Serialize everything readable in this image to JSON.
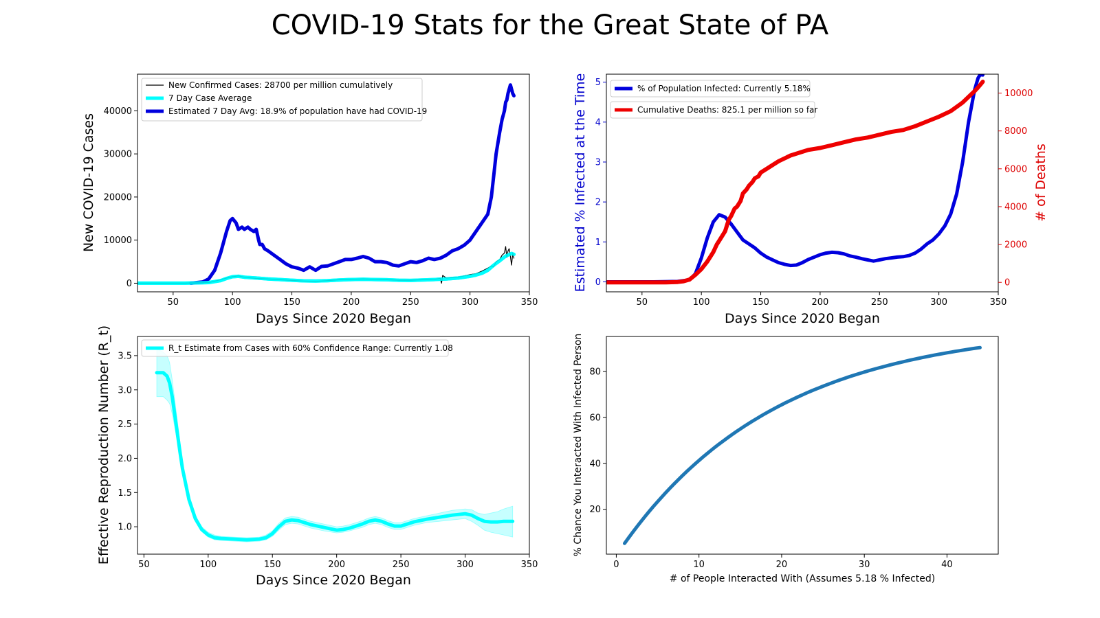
{
  "title": "COVID-19 Stats for the Great State of PA",
  "chart_data": [
    {
      "type": "line",
      "xlabel": "Days Since 2020 Began",
      "ylabel": "New COVID-19 Cases",
      "xlim": [
        20,
        350
      ],
      "ylim": [
        -2000,
        48500
      ],
      "xticks": [
        50,
        100,
        150,
        200,
        250,
        300,
        350
      ],
      "yticks": [
        0,
        10000,
        20000,
        30000,
        40000
      ],
      "legend_position": "top-left",
      "series": [
        {
          "name": "New Confirmed Cases: 28700 per million cumulatively",
          "color": "#000000",
          "style": "thin",
          "x": [
            20,
            60,
            80,
            90,
            95,
            100,
            105,
            110,
            120,
            130,
            140,
            150,
            160,
            170,
            180,
            190,
            200,
            210,
            220,
            230,
            240,
            250,
            260,
            270,
            275,
            276,
            277,
            280,
            290,
            300,
            305,
            310,
            315,
            318,
            320,
            322,
            325,
            327,
            329,
            330,
            331,
            332,
            333,
            334,
            335,
            336,
            337
          ],
          "y": [
            0,
            0,
            150,
            800,
            1200,
            1500,
            1700,
            1400,
            1100,
            1000,
            800,
            650,
            500,
            400,
            600,
            800,
            900,
            1000,
            900,
            800,
            700,
            700,
            800,
            900,
            1100,
            0,
            1800,
            1200,
            1400,
            2000,
            2200,
            2800,
            3500,
            4000,
            3800,
            5000,
            5500,
            6500,
            7000,
            8500,
            6000,
            7500,
            8000,
            6200,
            4200,
            7000,
            5800
          ]
        },
        {
          "name": "7 Day Case Average",
          "color": "#00ffff",
          "style": "thick",
          "x": [
            20,
            60,
            80,
            90,
            95,
            100,
            105,
            110,
            120,
            130,
            140,
            150,
            160,
            170,
            180,
            190,
            200,
            210,
            220,
            230,
            240,
            250,
            260,
            270,
            280,
            290,
            300,
            305,
            310,
            315,
            320,
            325,
            330,
            335,
            337
          ],
          "y": [
            0,
            0,
            150,
            600,
            1100,
            1500,
            1600,
            1400,
            1200,
            1000,
            850,
            700,
            550,
            500,
            600,
            750,
            850,
            900,
            850,
            800,
            700,
            650,
            750,
            850,
            1000,
            1200,
            1600,
            1900,
            2300,
            3000,
            4200,
            5200,
            6300,
            6900,
            6700
          ]
        },
        {
          "name": "Estimated 7 Day Avg: 18.9% of population have had COVID-19",
          "color": "#0000dd",
          "style": "thick",
          "x": [
            65,
            75,
            80,
            85,
            90,
            95,
            98,
            100,
            103,
            105,
            108,
            110,
            113,
            115,
            118,
            120,
            122,
            123,
            125,
            127,
            130,
            135,
            140,
            145,
            150,
            155,
            160,
            165,
            170,
            175,
            180,
            185,
            190,
            195,
            200,
            205,
            210,
            215,
            220,
            225,
            230,
            235,
            240,
            245,
            250,
            255,
            260,
            265,
            270,
            275,
            280,
            285,
            290,
            295,
            300,
            305,
            310,
            315,
            318,
            320,
            322,
            325,
            327,
            329,
            330,
            331,
            332,
            333,
            334,
            335,
            336,
            337
          ],
          "y": [
            0,
            300,
            1000,
            3000,
            7000,
            12000,
            14500,
            15000,
            14000,
            12500,
            13000,
            12500,
            13000,
            12500,
            12000,
            12500,
            10000,
            9000,
            9000,
            8000,
            7500,
            6500,
            5500,
            4500,
            3800,
            3500,
            3000,
            3800,
            3000,
            3900,
            4000,
            4500,
            5000,
            5500,
            5500,
            5800,
            6200,
            5800,
            5000,
            5000,
            4800,
            4200,
            4000,
            4500,
            5000,
            4800,
            5200,
            5800,
            5500,
            5800,
            6500,
            7500,
            8000,
            8800,
            10000,
            12000,
            14000,
            16000,
            20000,
            25000,
            30000,
            35000,
            38000,
            40000,
            42000,
            42500,
            44000,
            45000,
            46000,
            45000,
            44000,
            43500
          ]
        }
      ]
    },
    {
      "type": "line",
      "xlabel": "Days Since 2020 Began",
      "ylabel": "Estimated % Infected at the Time",
      "ylabel_right": "# of Deaths",
      "xlim": [
        20,
        350
      ],
      "ylim": [
        -0.25,
        5.2
      ],
      "ylim_right": [
        -500,
        11000
      ],
      "xticks": [
        50,
        100,
        150,
        200,
        250,
        300,
        350
      ],
      "yticks": [
        0,
        1,
        2,
        3,
        4,
        5
      ],
      "yticks_right": [
        0,
        2000,
        4000,
        6000,
        8000,
        10000
      ],
      "left_axis_color": "#0000cc",
      "right_axis_color": "#dd0000",
      "legend_position": "top-left",
      "series": [
        {
          "name": "% of Population Infected: Currently 5.18%",
          "color": "#0000dd",
          "axis": "left",
          "x": [
            20,
            60,
            80,
            90,
            95,
            100,
            105,
            110,
            115,
            120,
            125,
            130,
            135,
            140,
            145,
            150,
            155,
            160,
            165,
            170,
            175,
            180,
            185,
            190,
            195,
            200,
            205,
            210,
            215,
            220,
            225,
            230,
            235,
            240,
            245,
            250,
            255,
            260,
            265,
            270,
            275,
            280,
            285,
            290,
            295,
            300,
            305,
            310,
            315,
            320,
            325,
            330,
            333,
            335,
            337
          ],
          "y": [
            0,
            0,
            0.01,
            0.05,
            0.2,
            0.6,
            1.1,
            1.5,
            1.68,
            1.62,
            1.45,
            1.25,
            1.05,
            0.95,
            0.85,
            0.72,
            0.62,
            0.55,
            0.48,
            0.44,
            0.41,
            0.42,
            0.48,
            0.56,
            0.62,
            0.68,
            0.72,
            0.74,
            0.73,
            0.7,
            0.65,
            0.62,
            0.58,
            0.55,
            0.52,
            0.55,
            0.58,
            0.6,
            0.62,
            0.63,
            0.66,
            0.72,
            0.82,
            0.95,
            1.05,
            1.2,
            1.4,
            1.7,
            2.2,
            3.0,
            4.0,
            4.8,
            5.1,
            5.2,
            5.18
          ]
        },
        {
          "name": "Cumulative Deaths: 825.1 per million so far",
          "color": "#ee0000",
          "axis": "right",
          "x": [
            20,
            70,
            80,
            85,
            90,
            95,
            100,
            105,
            110,
            113,
            115,
            120,
            123,
            125,
            128,
            130,
            133,
            135,
            138,
            140,
            143,
            145,
            148,
            150,
            155,
            160,
            165,
            170,
            175,
            180,
            185,
            190,
            200,
            210,
            220,
            230,
            240,
            250,
            260,
            270,
            280,
            290,
            300,
            310,
            320,
            325,
            330,
            333,
            335,
            337
          ],
          "y": [
            0,
            0,
            20,
            60,
            150,
            400,
            700,
            1100,
            1600,
            2000,
            2200,
            2700,
            3300,
            3500,
            3900,
            4000,
            4300,
            4700,
            4900,
            5100,
            5300,
            5500,
            5600,
            5800,
            6000,
            6200,
            6400,
            6550,
            6700,
            6800,
            6900,
            7000,
            7100,
            7250,
            7400,
            7550,
            7650,
            7800,
            7950,
            8050,
            8250,
            8500,
            8750,
            9050,
            9500,
            9800,
            10100,
            10300,
            10450,
            10600
          ]
        }
      ]
    },
    {
      "type": "line",
      "xlabel": "Days Since 2020 Began",
      "ylabel": "Effective Reproduction Number (R_t)",
      "xlim": [
        45,
        350
      ],
      "ylim": [
        0.6,
        3.78
      ],
      "xticks": [
        50,
        100,
        150,
        200,
        250,
        300,
        350
      ],
      "yticks": [
        1.0,
        1.5,
        2.0,
        2.5,
        3.0,
        3.5
      ],
      "ytick_labels": [
        "1.0",
        "1.5",
        "2.0",
        "2.5",
        "3.0",
        "3.5"
      ],
      "legend_position": "top-left",
      "series": [
        {
          "name": "R_t Estimate from Cases with 60% Confidence Range: Currently 1.08",
          "color": "#00ffff",
          "x": [
            60,
            65,
            68,
            70,
            72,
            75,
            78,
            80,
            85,
            90,
            95,
            100,
            105,
            110,
            120,
            130,
            140,
            145,
            150,
            155,
            160,
            165,
            170,
            175,
            180,
            190,
            200,
            205,
            210,
            220,
            225,
            230,
            235,
            240,
            245,
            250,
            255,
            260,
            270,
            280,
            290,
            300,
            305,
            310,
            315,
            320,
            325,
            330,
            337
          ],
          "y": [
            3.25,
            3.25,
            3.2,
            3.1,
            2.9,
            2.5,
            2.1,
            1.85,
            1.4,
            1.12,
            0.96,
            0.88,
            0.84,
            0.83,
            0.82,
            0.81,
            0.82,
            0.84,
            0.9,
            1.0,
            1.08,
            1.1,
            1.09,
            1.06,
            1.03,
            0.99,
            0.95,
            0.96,
            0.98,
            1.04,
            1.08,
            1.1,
            1.08,
            1.04,
            1.01,
            1.01,
            1.04,
            1.07,
            1.11,
            1.14,
            1.17,
            1.19,
            1.17,
            1.12,
            1.08,
            1.07,
            1.07,
            1.08,
            1.08
          ],
          "lower": [
            2.9,
            2.9,
            2.85,
            2.8,
            2.65,
            2.35,
            2.0,
            1.78,
            1.35,
            1.08,
            0.93,
            0.85,
            0.81,
            0.8,
            0.79,
            0.78,
            0.79,
            0.81,
            0.86,
            0.95,
            1.03,
            1.05,
            1.04,
            1.01,
            0.98,
            0.94,
            0.91,
            0.92,
            0.94,
            0.99,
            1.03,
            1.05,
            1.03,
            0.99,
            0.96,
            0.96,
            0.99,
            1.02,
            1.06,
            1.08,
            1.1,
            1.12,
            1.08,
            1.02,
            0.95,
            0.92,
            0.9,
            0.88,
            0.85
          ],
          "upper": [
            3.6,
            3.55,
            3.5,
            3.4,
            3.15,
            2.7,
            2.25,
            1.95,
            1.46,
            1.17,
            1.0,
            0.92,
            0.88,
            0.86,
            0.85,
            0.84,
            0.85,
            0.88,
            0.94,
            1.05,
            1.13,
            1.15,
            1.14,
            1.11,
            1.08,
            1.04,
            1.0,
            1.01,
            1.03,
            1.09,
            1.13,
            1.15,
            1.13,
            1.09,
            1.06,
            1.06,
            1.09,
            1.12,
            1.16,
            1.2,
            1.24,
            1.26,
            1.25,
            1.2,
            1.18,
            1.2,
            1.22,
            1.26,
            1.3
          ]
        }
      ]
    },
    {
      "type": "line",
      "xlabel": "# of People Interacted With (Assumes 5.18 % Infected)",
      "ylabel": "% Chance You Interacted With Infected Person",
      "xlim": [
        -1.2,
        46.2
      ],
      "ylim": [
        0.5,
        95.2
      ],
      "xticks": [
        0,
        10,
        20,
        30,
        40
      ],
      "yticks": [
        20,
        40,
        60,
        80
      ],
      "series": [
        {
          "color": "#1f77b4",
          "infection_rate": 0.0518,
          "x_range": [
            1,
            44
          ]
        }
      ]
    }
  ]
}
